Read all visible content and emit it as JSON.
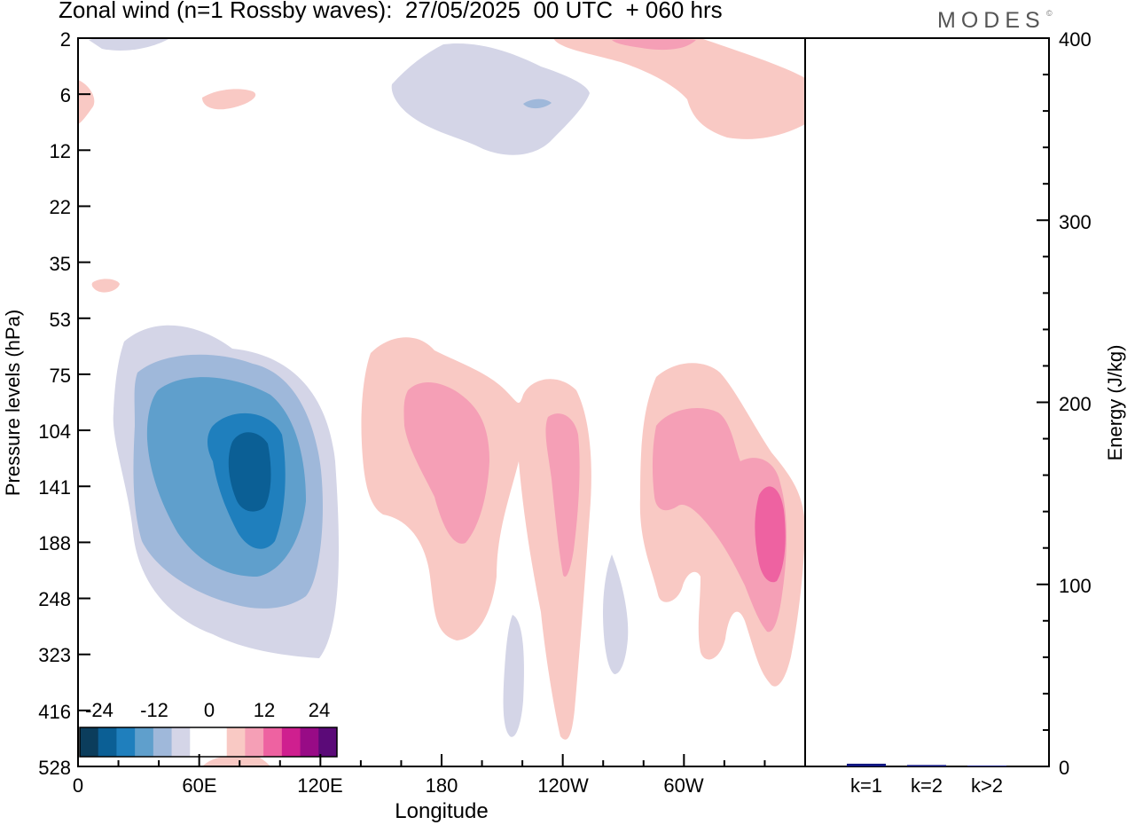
{
  "header": {
    "title": "Zonal wind (n=1 Rossby waves):  27/05/2025  00 UTC  + 060 hrs",
    "brand": "MODES",
    "brand_mark": "©"
  },
  "colors": {
    "neg": [
      "#0b3d5c",
      "#0b5f95",
      "#1f7fbd",
      "#5f9fcc",
      "#9fb8da",
      "#d4d5e7"
    ],
    "zero": "#ffffff",
    "pos": [
      "#f9c9c4",
      "#f59fb6",
      "#ee62a1",
      "#cf1f8f",
      "#980b86",
      "#5b0a78"
    ],
    "bar": "#101680"
  },
  "chart_data": [
    {
      "type": "heatmap",
      "title": "Zonal wind (n=1 Rossby waves):  27/05/2025  00 UTC  + 060 hrs",
      "xlabel": "Longitude",
      "ylabel": "Pressure levels (hPa)",
      "x_ticks": [
        "0",
        "60E",
        "120E",
        "180",
        "120W",
        "60W"
      ],
      "x_tick_degrees": [
        0,
        60,
        120,
        180,
        240,
        300
      ],
      "xlim": [
        0,
        360
      ],
      "y_ticks": [
        "2",
        "6",
        "12",
        "22",
        "35",
        "53",
        "75",
        "104",
        "141",
        "188",
        "248",
        "323",
        "416",
        "528"
      ],
      "colorbar": {
        "tick_labels": [
          "-24",
          "-12",
          "0",
          "12",
          "24"
        ],
        "levels": [
          -24,
          -20,
          -16,
          -12,
          -8,
          -4,
          0,
          4,
          8,
          12,
          16,
          20,
          24
        ]
      },
      "features": [
        {
          "sign": "negative",
          "lon": 87,
          "level": "141",
          "min": -22
        },
        {
          "sign": "positive",
          "lon": 188,
          "level": "141",
          "max": 10
        },
        {
          "sign": "positive",
          "lon": 243,
          "level": "141",
          "max": 10
        },
        {
          "sign": "positive",
          "lon": 342,
          "level": "188",
          "max": 14
        },
        {
          "sign": "negative",
          "lon": 230,
          "level": "6",
          "min": -6
        },
        {
          "sign": "positive",
          "lon": 300,
          "level": "2",
          "max": 8
        }
      ]
    },
    {
      "type": "bar",
      "ylabel": "Energy (J/kg)",
      "ylim": [
        0,
        400
      ],
      "y_ticks": [
        "0",
        "100",
        "200",
        "300",
        "400"
      ],
      "categories": [
        "k=1",
        "k=2",
        "k>2"
      ],
      "values": [
        1.5,
        0.8,
        0.5
      ]
    }
  ]
}
